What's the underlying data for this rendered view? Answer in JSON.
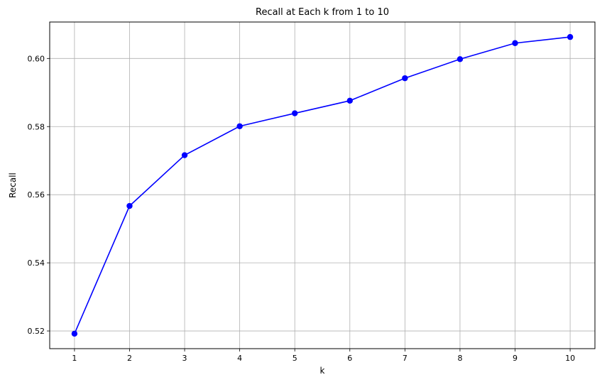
{
  "chart_data": {
    "type": "line",
    "title": "Recall at Each k from 1 to 10",
    "xlabel": "k",
    "ylabel": "Recall",
    "x": [
      1,
      2,
      3,
      4,
      5,
      6,
      7,
      8,
      9,
      10
    ],
    "series": [
      {
        "values": [
          0.5192,
          0.5567,
          0.5716,
          0.5801,
          0.5839,
          0.5876,
          0.5942,
          0.5998,
          0.6045,
          0.6063
        ],
        "color": "#0000ff",
        "marker": "circle"
      }
    ],
    "xticks": [
      "1",
      "2",
      "3",
      "4",
      "5",
      "6",
      "7",
      "8",
      "9",
      "10"
    ],
    "yticks": [
      {
        "value": 0.52,
        "label": "0.52"
      },
      {
        "value": 0.54,
        "label": "0.54"
      },
      {
        "value": 0.56,
        "label": "0.56"
      },
      {
        "value": 0.58,
        "label": "0.58"
      },
      {
        "value": 0.6,
        "label": "0.60"
      }
    ],
    "xlim": [
      0.55,
      10.45
    ],
    "ylim": [
      0.5148,
      0.6107
    ],
    "grid": true,
    "grid_color": "#b0b0b0",
    "axis_color": "#000000"
  }
}
